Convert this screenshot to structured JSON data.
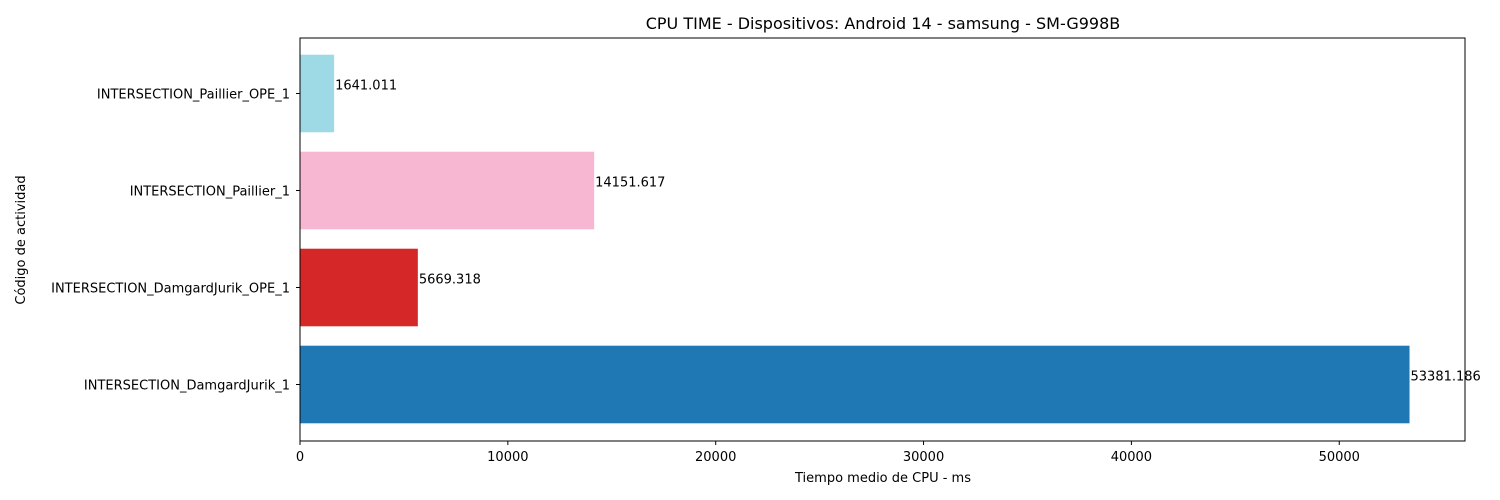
{
  "chart_data": {
    "type": "bar",
    "orientation": "horizontal",
    "title": "CPU TIME - Dispositivos: Android 14 - samsung - SM-G998B",
    "xlabel": "Tiempo medio de CPU - ms",
    "ylabel": "Código de actividad",
    "categories": [
      "INTERSECTION_DamgardJurik_1",
      "INTERSECTION_DamgardJurik_OPE_1",
      "INTERSECTION_Paillier_1",
      "INTERSECTION_Paillier_OPE_1"
    ],
    "values": [
      53381.186,
      5669.318,
      14151.617,
      1641.011
    ],
    "value_labels": [
      "53381.186",
      "5669.318",
      "14151.617",
      "1641.011"
    ],
    "colors": [
      "#1f77b4",
      "#d62728",
      "#f7b6d2",
      "#9edae5"
    ],
    "xlim": [
      0,
      56050
    ],
    "xticks": [
      0,
      10000,
      20000,
      30000,
      40000,
      50000
    ],
    "xtick_labels": [
      "0",
      "10000",
      "20000",
      "30000",
      "40000",
      "50000"
    ],
    "grid": false,
    "legend": "none"
  }
}
